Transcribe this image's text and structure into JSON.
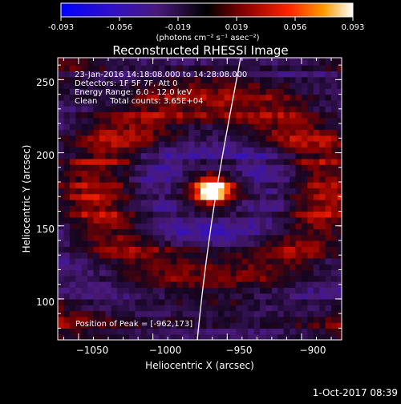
{
  "colorbar": {
    "ticks": [
      "-0.093",
      "-0.056",
      "-0.019",
      "0.019",
      "0.056",
      "0.093"
    ],
    "units_label": "(photons cm⁻² s⁻¹ asec⁻²)"
  },
  "image": {
    "title": "Reconstructed RHESSI Image",
    "info_lines": [
      "23-Jan-2016 14:18:08.000 to 14:28:08.000",
      "Detectors: 1F 5F 7F, Att 0",
      "Energy Range: 6.0 - 12.0 keV",
      "Clean     Total counts: 3.65E+04"
    ],
    "peak_label": "Position of Peak = [-962,173]",
    "xlabel": "Heliocentric X (arcsec)",
    "ylabel": "Heliocentric Y (arcsec)",
    "xticks": [
      "−1050",
      "−1000",
      "−950",
      "−900"
    ],
    "yticks": [
      "250",
      "200",
      "150",
      "100"
    ],
    "date_stamp": "1-Oct-2017 08:39"
  },
  "chart_data": {
    "type": "heatmap",
    "title": "Reconstructed RHESSI Image",
    "xlabel": "Heliocentric X (arcsec)",
    "ylabel": "Heliocentric Y (arcsec)",
    "xlim": [
      -1064,
      -873
    ],
    "ylim": [
      72,
      265
    ],
    "xticks": [
      -1050,
      -1000,
      -950,
      -900
    ],
    "yticks": [
      100,
      150,
      200,
      250
    ],
    "peak": [
      -962,
      173
    ],
    "colorbar_range": [
      -0.093,
      0.093
    ],
    "colormap_stops": [
      "#0000ff",
      "#3a1aa0",
      "#2a0a3a",
      "#000000",
      "#8a0000",
      "#ff3300",
      "#ff9900",
      "#ffffff"
    ]
  }
}
